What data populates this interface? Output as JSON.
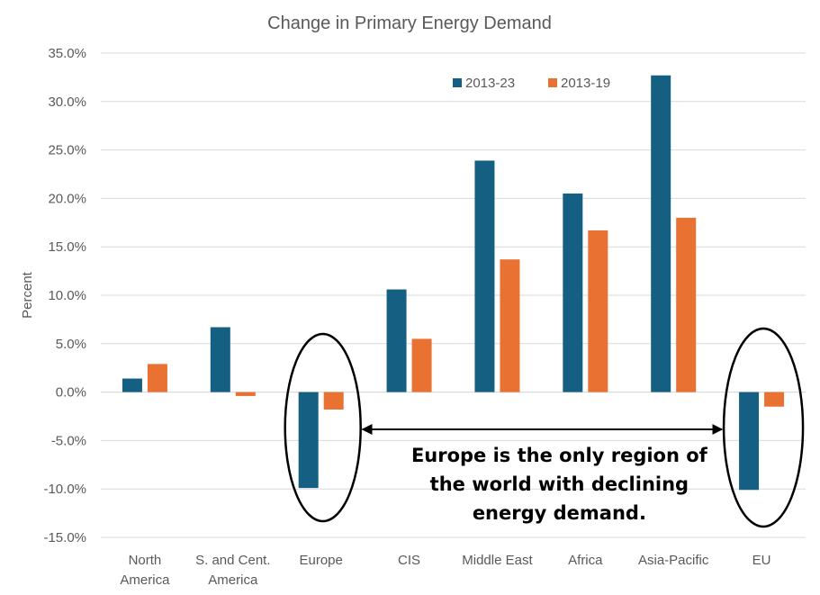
{
  "chart_data": {
    "type": "bar",
    "title": "Change in Primary Energy Demand",
    "ylabel": "Percent",
    "xlabel": "",
    "ylim": [
      -15,
      35
    ],
    "ytick_step": 5,
    "ytick_labels": [
      "-15.0%",
      "-10.0%",
      "-5.0%",
      "0.0%",
      "5.0%",
      "10.0%",
      "15.0%",
      "20.0%",
      "25.0%",
      "30.0%",
      "35.0%"
    ],
    "grid": true,
    "legend_position": "top-right",
    "categories": [
      [
        "North",
        "America"
      ],
      [
        "S. and Cent.",
        "America"
      ],
      [
        "Europe"
      ],
      [
        "CIS"
      ],
      [
        "Middle East"
      ],
      [
        "Africa"
      ],
      [
        "Asia-Pacific"
      ],
      [
        "EU"
      ]
    ],
    "series": [
      {
        "name": "2013-23",
        "color": "#156082",
        "values": [
          1.4,
          6.7,
          -9.9,
          10.6,
          23.9,
          20.5,
          32.7,
          -10.1
        ]
      },
      {
        "name": "2013-19",
        "color": "#E97132",
        "values": [
          2.9,
          -0.4,
          -1.8,
          5.5,
          13.7,
          16.7,
          18.0,
          -1.5
        ]
      }
    ],
    "annotation": {
      "lines": [
        "Europe is the only region of",
        "the world with declining",
        "energy demand."
      ],
      "highlighted_categories": [
        "Europe",
        "EU"
      ]
    }
  }
}
